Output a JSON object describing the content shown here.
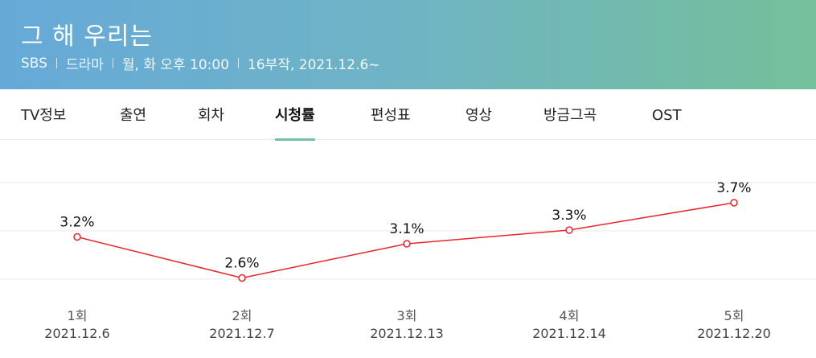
{
  "header": {
    "title": "그 해 우리는",
    "meta": [
      "SBS",
      "드라마",
      "월, 화 오후 10:00",
      "16부작, 2021.12.6~"
    ],
    "gradient_start": "#66a9d9",
    "gradient_end": "#74c09a"
  },
  "tabs": [
    {
      "label": "TV정보",
      "active": false
    },
    {
      "label": "출연",
      "active": false
    },
    {
      "label": "회차",
      "active": false
    },
    {
      "label": "시청률",
      "active": true
    },
    {
      "label": "편성표",
      "active": false
    },
    {
      "label": "영상",
      "active": false
    },
    {
      "label": "방금그곡",
      "active": false
    },
    {
      "label": "OST",
      "active": false
    }
  ],
  "chart_data": {
    "type": "line",
    "categories": [
      "1회",
      "2회",
      "3회",
      "4회",
      "5회"
    ],
    "dates": [
      "2021.12.6",
      "2021.12.7",
      "2021.12.13",
      "2021.12.14",
      "2021.12.20"
    ],
    "values": [
      3.2,
      2.6,
      3.1,
      3.3,
      3.7
    ],
    "value_labels": [
      "3.2%",
      "2.6%",
      "3.1%",
      "3.3%",
      "3.7%"
    ],
    "ylim": [
      2.5,
      3.7
    ],
    "line_color": "#e8262b",
    "grid": true
  }
}
